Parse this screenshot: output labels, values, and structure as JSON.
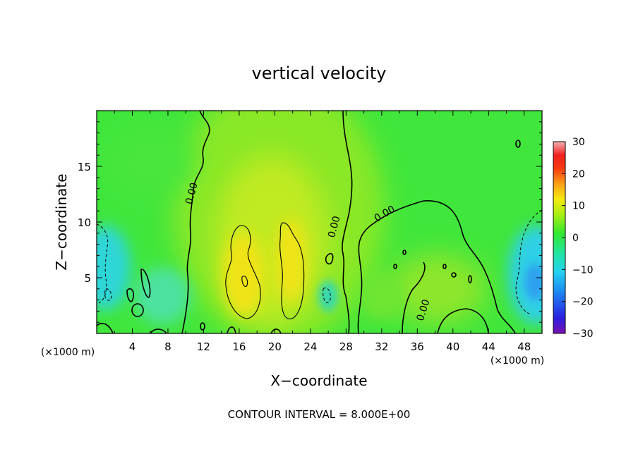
{
  "chart_data": {
    "type": "heatmap",
    "title": "vertical velocity",
    "xlabel": "X−coordinate",
    "ylabel": "Z−coordinate",
    "x_unit_left": "(×1000 m)",
    "x_unit_right": "(×1000 m)",
    "footer": "CONTOUR INTERVAL = 8.000E+00",
    "x_ticks": [
      "4",
      "8",
      "12",
      "16",
      "20",
      "24",
      "28",
      "32",
      "36",
      "40",
      "44",
      "48"
    ],
    "y_ticks": [
      "5",
      "10",
      "15"
    ],
    "xlim": [
      0,
      50
    ],
    "ylim": [
      0,
      20
    ],
    "colorbar": {
      "ticks": [
        "30",
        "20",
        "10",
        "0",
        "−10",
        "−20",
        "−30"
      ],
      "range": [
        -30,
        30
      ]
    },
    "contour_labels": [
      {
        "text": "0.00",
        "x": 11.0,
        "z": 12.5
      },
      {
        "text": "0.00",
        "x": 27.0,
        "z": 9.5
      },
      {
        "text": "0.00",
        "x": 32.5,
        "z": 10.5
      },
      {
        "text": "0.00",
        "x": 37.0,
        "z": 2.0
      }
    ],
    "colors": {
      "background_field": "#3fe63a",
      "updraft": "#f0e61a",
      "downdraft": "#2fd8d0"
    }
  }
}
